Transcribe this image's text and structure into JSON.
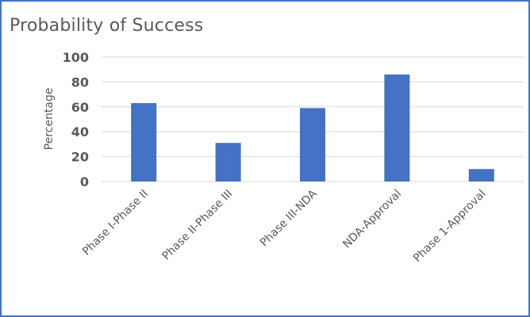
{
  "chart_data": {
    "type": "bar",
    "title": "Probability of Success",
    "xlabel": "",
    "ylabel": "Percentage",
    "categories": [
      "Phase I-Phase II",
      "Phase II-Phase III",
      "Phase III-NDA",
      "NDA-Approval",
      "Phase 1-Approval"
    ],
    "values": [
      63,
      31,
      59,
      86,
      10
    ],
    "yticks": [
      "0",
      "20",
      "40",
      "60",
      "80",
      "100"
    ],
    "ylim": [
      0,
      100
    ],
    "grid": true,
    "legend": "none",
    "bar_color": "#4472c4",
    "grid_color": "#d9d9d9"
  }
}
